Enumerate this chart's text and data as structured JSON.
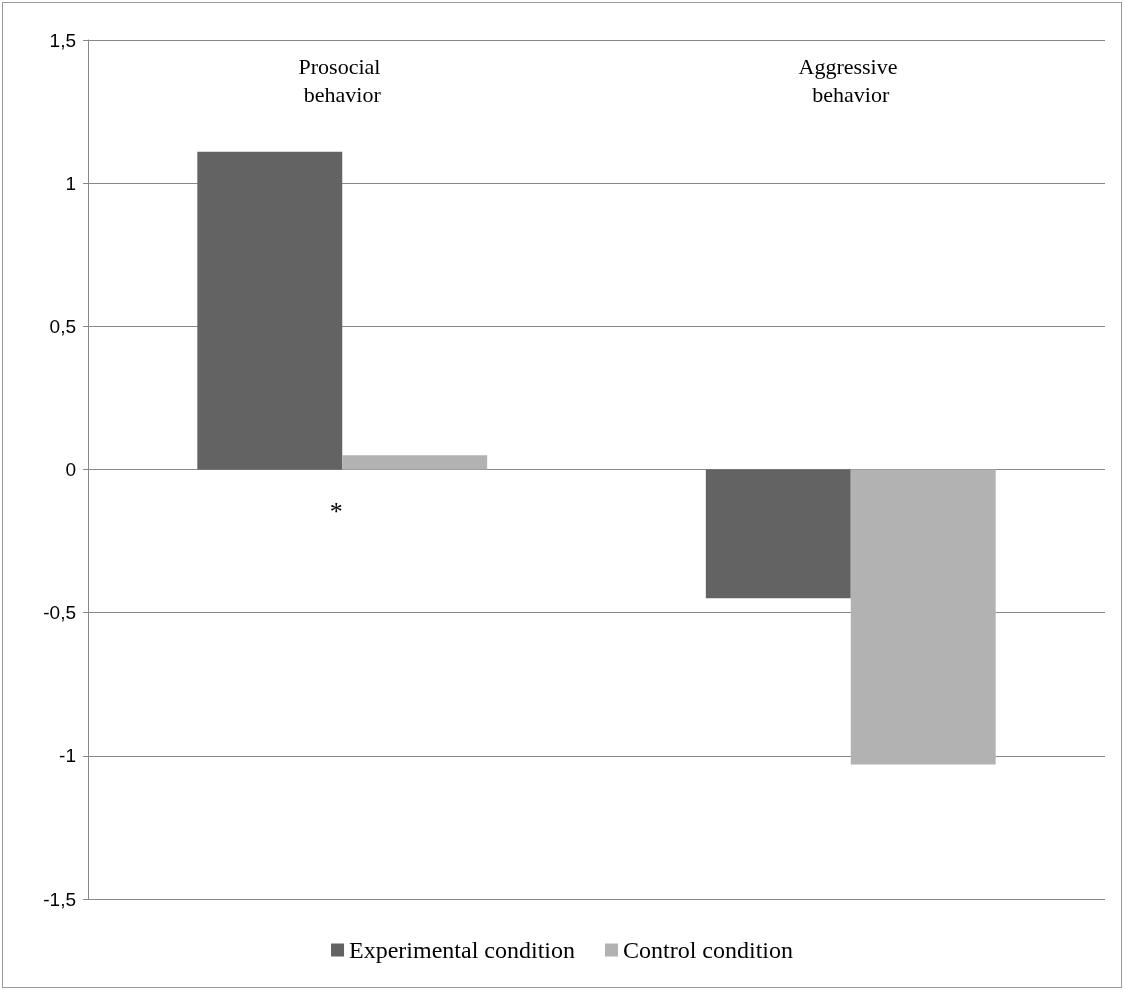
{
  "chart_data": {
    "type": "bar",
    "categories": [
      "Prosocial behavior",
      "Aggressive behavior"
    ],
    "series": [
      {
        "name": "Experimental condition",
        "color": "#636363",
        "values": [
          1.11,
          -0.45
        ]
      },
      {
        "name": "Control condition",
        "color": "#b2b2b2",
        "values": [
          0.05,
          -1.03
        ]
      }
    ],
    "ylim": [
      -1.5,
      1.5
    ],
    "yticks": [
      {
        "value": -1.5,
        "label": "-1,5"
      },
      {
        "value": -1,
        "label": "-1"
      },
      {
        "value": -0.5,
        "label": "-0,5"
      },
      {
        "value": 0,
        "label": "0"
      },
      {
        "value": 0.5,
        "label": "0,5"
      },
      {
        "value": 1,
        "label": "1"
      },
      {
        "value": 1.5,
        "label": "1,5"
      }
    ],
    "annotations": [
      "*"
    ],
    "grid": "y",
    "legend": "bottom"
  }
}
